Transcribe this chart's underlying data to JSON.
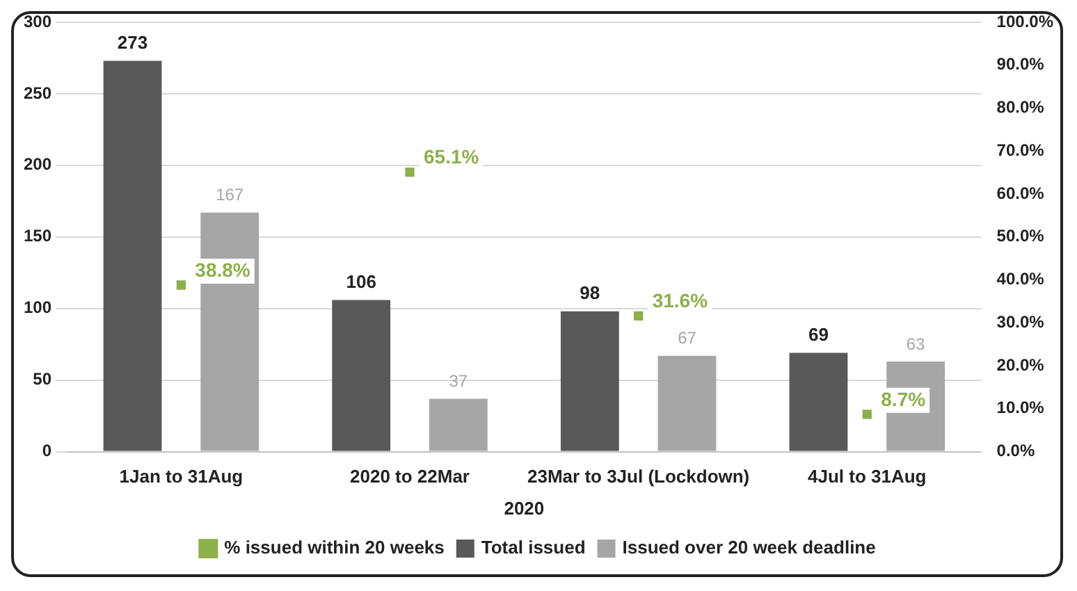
{
  "chart_data": {
    "type": "bar",
    "xlabel": "2020",
    "categories": [
      "1Jan to 31Aug",
      "2020 to 22Mar",
      "23Mar to 3Jul (Lockdown)",
      "4Jul to 31Aug"
    ],
    "series": [
      {
        "name": "Total issued",
        "color": "#595959",
        "values": [
          273,
          106,
          98,
          69
        ],
        "value_labels": [
          "273",
          "106",
          "98",
          "69"
        ]
      },
      {
        "name": "Issued over 20 week deadline",
        "color": "#a6a6a6",
        "values": [
          167,
          37,
          67,
          63
        ],
        "value_labels": [
          "167",
          "37",
          "67",
          "63"
        ]
      },
      {
        "name": "% issued within 20 weeks",
        "type": "scatter",
        "axis": "y2",
        "color": "#8db04a",
        "marker": "square",
        "values": [
          38.8,
          65.1,
          31.6,
          8.7
        ],
        "value_labels": [
          "38.8%",
          "65.1%",
          "31.6%",
          "8.7%"
        ]
      }
    ],
    "ylim": [
      0,
      300
    ],
    "yticks": [
      0,
      50,
      100,
      150,
      200,
      250,
      300
    ],
    "y2lim": [
      0,
      100
    ],
    "y2ticks": [
      {
        "value": 0,
        "label": "0.0%"
      },
      {
        "value": 10,
        "label": "10.0%"
      },
      {
        "value": 20,
        "label": "20.0%"
      },
      {
        "value": 30,
        "label": "30.0%"
      },
      {
        "value": 40,
        "label": "40.0%"
      },
      {
        "value": 50,
        "label": "50.0%"
      },
      {
        "value": 60,
        "label": "60.0%"
      },
      {
        "value": 70,
        "label": "70.0%"
      },
      {
        "value": 80,
        "label": "80.0%"
      },
      {
        "value": 90,
        "label": "90.0%"
      },
      {
        "value": 100,
        "label": "100.0%"
      }
    ],
    "grid": "y",
    "legend": "bottom"
  }
}
